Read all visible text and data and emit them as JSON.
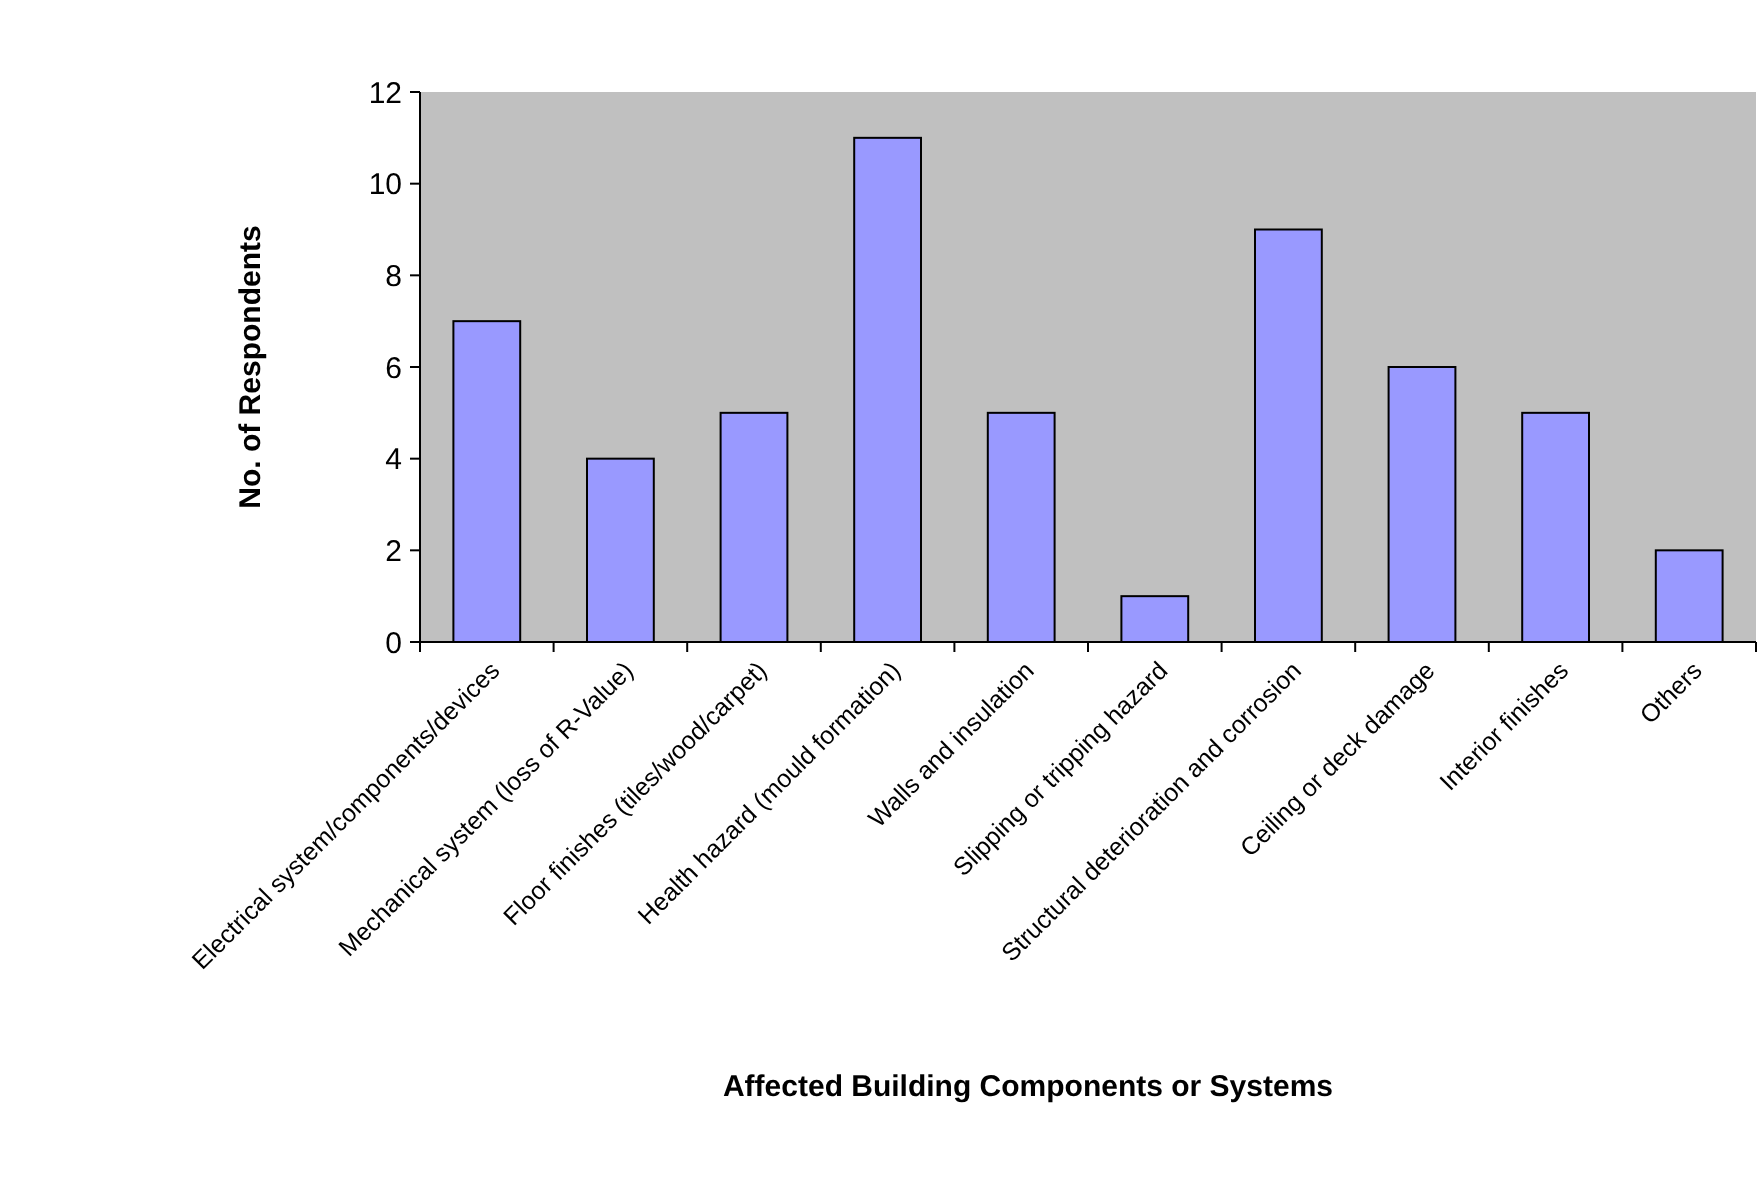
{
  "chart_data": {
    "type": "bar",
    "xlabel": "Affected Building Components or Systems",
    "ylabel": "No. of Respondents",
    "categories": [
      "Electrical system/components/devices",
      "Mechanical system (loss of R-Value)",
      "Floor finishes (tiles/wood/carpet)",
      "Health hazard (mould formation)",
      "Walls and insulation",
      "Slipping or tripping hazard",
      "Structural deterioration and corrosion",
      "Ceiling or deck damage",
      "Interior finishes",
      "Others"
    ],
    "values": [
      7,
      4,
      5,
      11,
      5,
      1,
      9,
      6,
      5,
      2
    ],
    "color": "#9999ff",
    "ylim": [
      0,
      12
    ],
    "yticks": [
      0,
      2,
      4,
      6,
      8,
      10,
      12
    ]
  }
}
